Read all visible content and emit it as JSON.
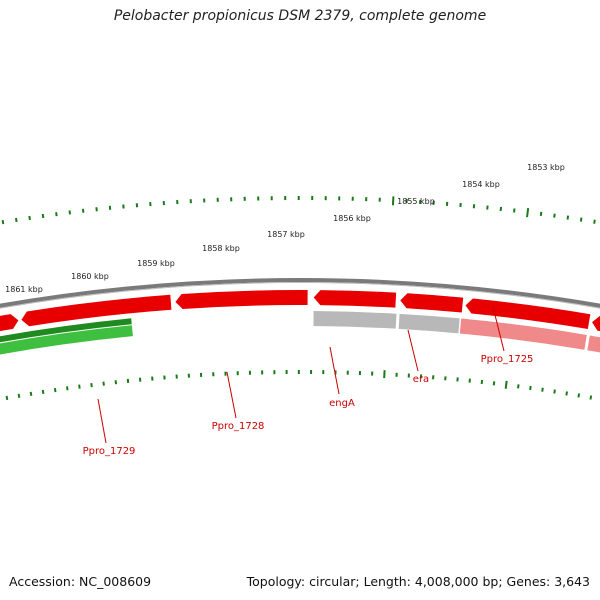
{
  "title": "Pelobacter propionicus DSM 2379, complete genome",
  "footer": {
    "accession": "Accession: NC_008609",
    "summary": "Topology: circular; Length: 4,008,000 bp; Genes: 3,643"
  },
  "colors": {
    "backbone": "#7a7a7a",
    "cds_forward": "#e80000",
    "cds_reverse": "#e80000",
    "cds_faded": "#f08a8a",
    "gray_track": "#b8b8b8",
    "green_track": "#3fbf3f",
    "dark_green_track": "#1f8a1f",
    "ticks": "#1a7a1a",
    "labels": "#cc0000"
  },
  "kbp_labels": [
    "1853 kbp",
    "1854 kbp",
    "1855 kbp",
    "1856 kbp",
    "1857 kbp",
    "1858 kbp",
    "1859 kbp",
    "1860 kbp",
    "1861 kbp"
  ],
  "gene_labels": [
    "Ppro_1725",
    "era",
    "engA",
    "Ppro_1728",
    "Ppro_1729"
  ]
}
